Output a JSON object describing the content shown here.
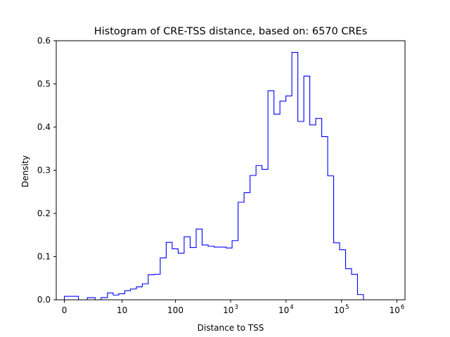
{
  "chart_data": {
    "type": "histogram",
    "title": "Histogram of CRE-TSS distance, based on: 6570 CREs",
    "xlabel": "Distance to TSS",
    "ylabel": "Density",
    "x_scale": "symlog",
    "xlim": [
      -0.4,
      1400000.0
    ],
    "ylim": [
      0,
      0.6
    ],
    "x_ticks": [
      {
        "value": 0,
        "label": "0"
      },
      {
        "value": 10,
        "label": "10"
      },
      {
        "value": 100,
        "label": "100"
      },
      {
        "value": 1000,
        "label": "10",
        "sup": "3"
      },
      {
        "value": 10000,
        "label": "10",
        "sup": "4"
      },
      {
        "value": 100000,
        "label": "10",
        "sup": "5"
      },
      {
        "value": 1000000,
        "label": "10",
        "sup": "6"
      }
    ],
    "y_ticks": [
      {
        "value": 0.0,
        "label": "0.0"
      },
      {
        "value": 0.1,
        "label": "0.1"
      },
      {
        "value": 0.2,
        "label": "0.2"
      },
      {
        "value": 0.3,
        "label": "0.3"
      },
      {
        "value": 0.4,
        "label": "0.4"
      },
      {
        "value": 0.5,
        "label": "0.5"
      },
      {
        "value": 0.6,
        "label": "0.6"
      }
    ],
    "bin_edges": [
      0,
      0.8,
      1.6,
      2.6,
      3.6,
      5.0,
      6.6,
      8.6,
      11.3,
      14.6,
      18.9,
      24.5,
      31.6,
      40.9,
      52.7,
      67.8,
      87.2,
      112,
      144,
      185,
      238,
      305,
      392,
      503,
      645,
      828,
      1062,
      1362,
      1746,
      2239,
      2871,
      3681,
      4719,
      6049,
      7754,
      9939,
      12740,
      16328,
      20925,
      26815,
      34362,
      44030,
      56416,
      72282,
      92606,
      118637,
      151981,
      194679,
      249348,
      319330,
      408933,
      523668,
      670560
    ],
    "density": [
      0.008,
      0.0,
      0.005,
      0.0,
      0.005,
      0.016,
      0.011,
      0.014,
      0.021,
      0.025,
      0.03,
      0.037,
      0.058,
      0.059,
      0.097,
      0.133,
      0.118,
      0.108,
      0.146,
      0.121,
      0.164,
      0.127,
      0.124,
      0.122,
      0.122,
      0.12,
      0.137,
      0.226,
      0.248,
      0.288,
      0.311,
      0.302,
      0.484,
      0.43,
      0.46,
      0.472,
      0.573,
      0.413,
      0.518,
      0.405,
      0.42,
      0.378,
      0.287,
      0.132,
      0.116,
      0.072,
      0.059,
      0.012,
      0.0,
      0.0,
      0.0,
      0.0
    ],
    "color": "#0000ff",
    "grid": false,
    "legend": "none"
  }
}
